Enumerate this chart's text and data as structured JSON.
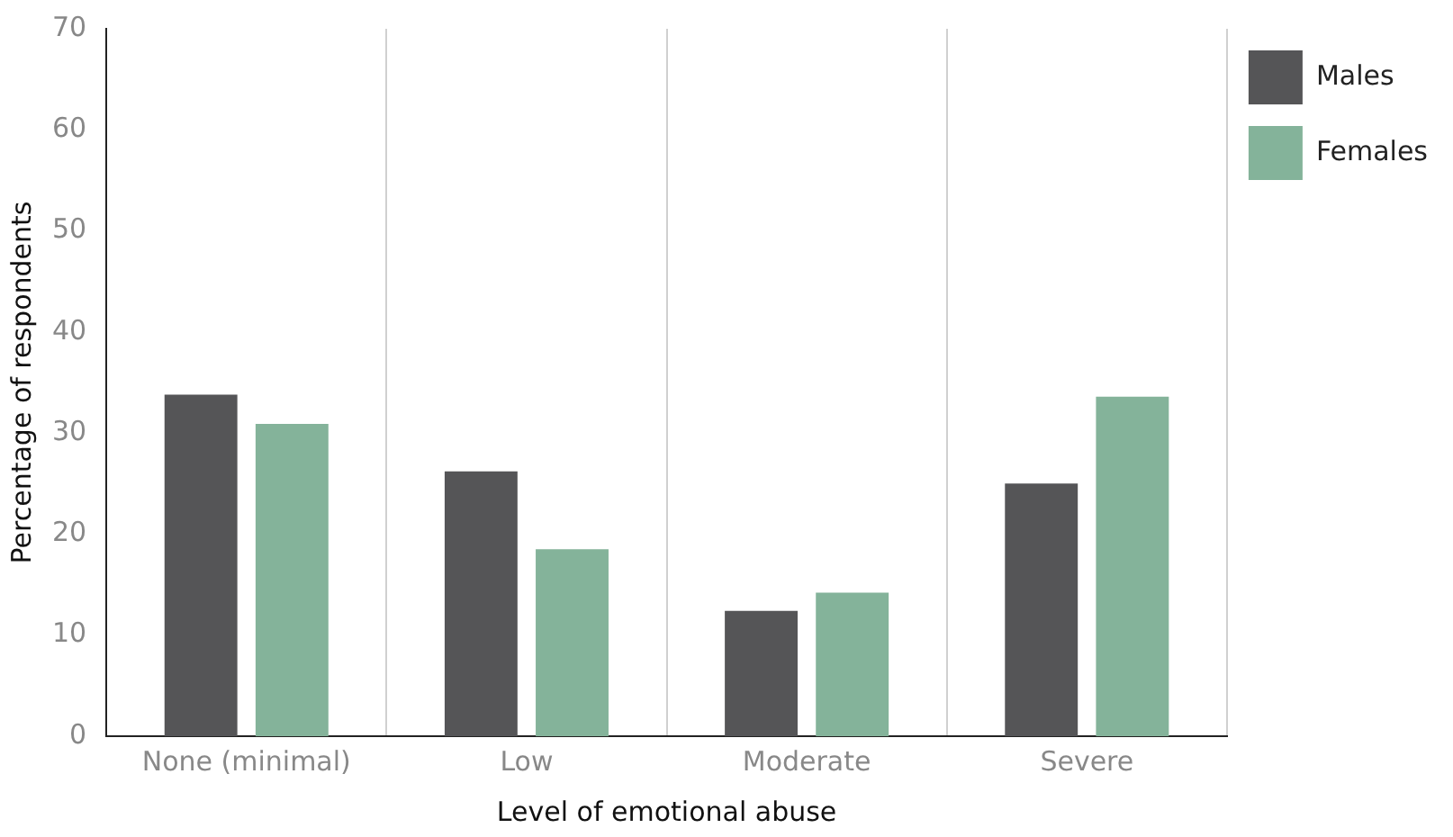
{
  "chart_data": {
    "type": "bar",
    "xlabel": "Level of emotional abuse",
    "ylabel": "Percentage of respondents",
    "categories": [
      "None (minimal)",
      "Low",
      "Moderate",
      "Severe"
    ],
    "series": [
      {
        "name": "Males",
        "color": "#555557",
        "values": [
          33.8,
          26.2,
          12.4,
          25
        ]
      },
      {
        "name": "Females",
        "color": "#84b39a",
        "values": [
          30.9,
          18.5,
          14.2,
          33.6
        ]
      }
    ],
    "ylim": [
      0,
      70
    ],
    "yticks": [
      0,
      10,
      20,
      30,
      40,
      50,
      60,
      70
    ],
    "grid": "x",
    "legend": "top right"
  }
}
